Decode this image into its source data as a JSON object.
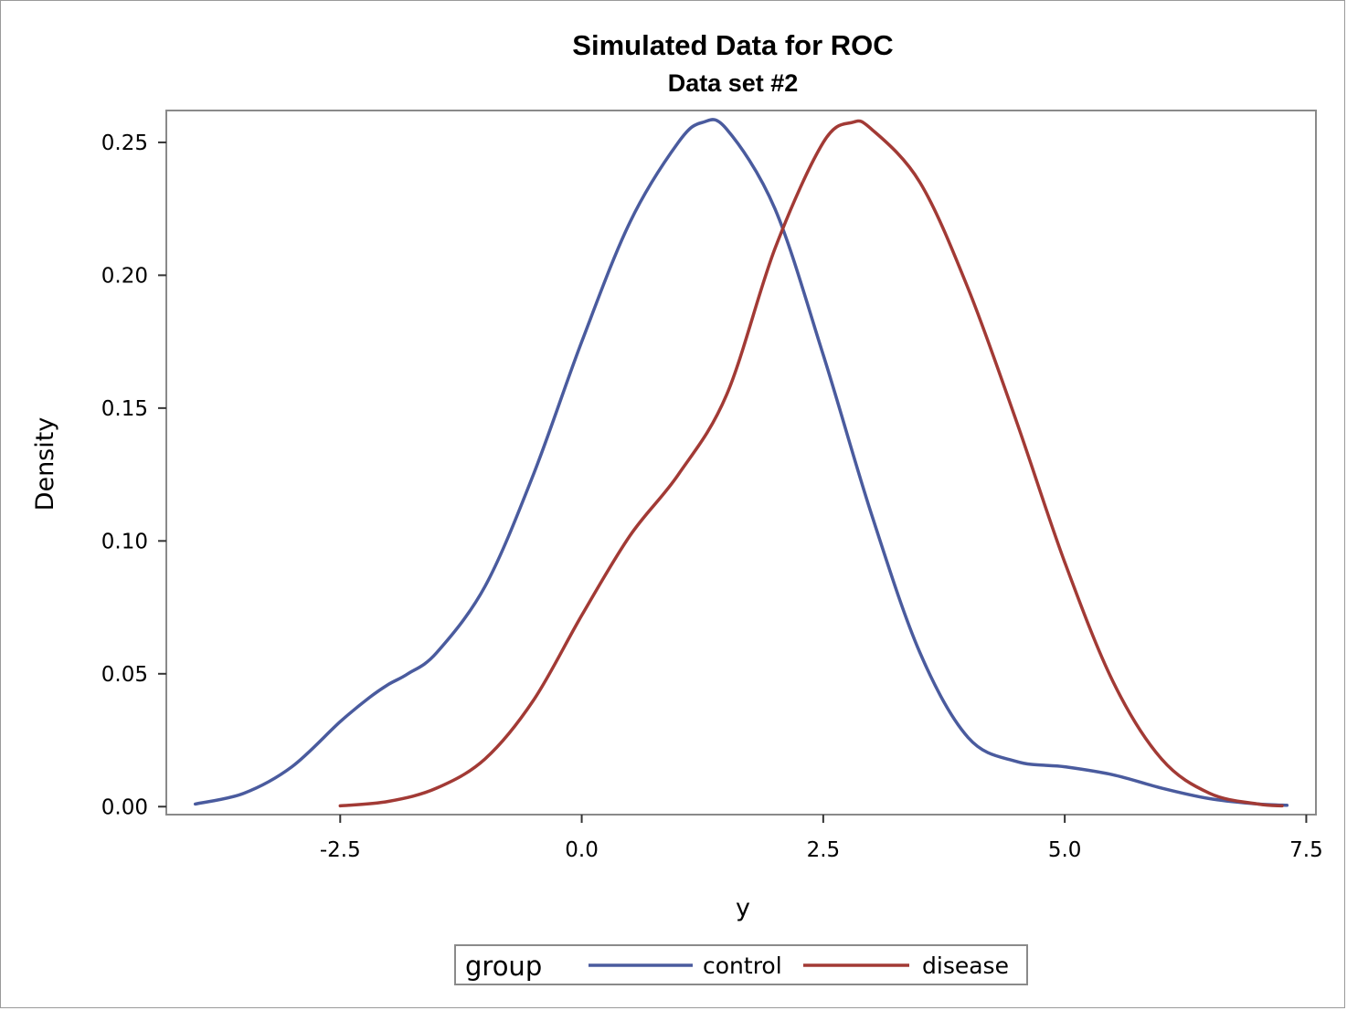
{
  "chart_data": {
    "type": "line",
    "title": "Simulated Data for ROC",
    "subtitle": "Data set #2",
    "xlabel": "y",
    "ylabel": "Density",
    "xlim": [
      -4.3,
      7.6
    ],
    "ylim": [
      -0.003,
      0.262
    ],
    "x_ticks": [
      -2.5,
      0.0,
      2.5,
      5.0,
      7.5
    ],
    "x_tick_labels": [
      "-2.5",
      "0.0",
      "2.5",
      "5.0",
      "7.5"
    ],
    "y_ticks": [
      0.0,
      0.05,
      0.1,
      0.15,
      0.2,
      0.25
    ],
    "y_tick_labels": [
      "0.00",
      "0.05",
      "0.10",
      "0.15",
      "0.20",
      "0.25"
    ],
    "grid": false,
    "legend": {
      "title": "group",
      "placement": "bottom-center",
      "entries": [
        "control",
        "disease"
      ]
    },
    "series": [
      {
        "name": "control",
        "color": "#4a5b9e",
        "x": [
          -4.0,
          -3.5,
          -3.0,
          -2.5,
          -2.2,
          -2.0,
          -1.8,
          -1.5,
          -1.0,
          -0.5,
          0.0,
          0.5,
          1.0,
          1.25,
          1.5,
          2.0,
          2.5,
          3.0,
          3.5,
          4.0,
          4.5,
          5.0,
          5.5,
          6.0,
          6.5,
          7.0,
          7.3
        ],
        "y": [
          0.001,
          0.005,
          0.015,
          0.032,
          0.041,
          0.046,
          0.05,
          0.058,
          0.083,
          0.125,
          0.175,
          0.22,
          0.25,
          0.2575,
          0.255,
          0.225,
          0.17,
          0.11,
          0.058,
          0.026,
          0.017,
          0.015,
          0.012,
          0.007,
          0.003,
          0.001,
          0.0005
        ]
      },
      {
        "name": "disease",
        "color": "#a23a35",
        "x": [
          -2.5,
          -2.0,
          -1.5,
          -1.0,
          -0.5,
          0.0,
          0.5,
          1.0,
          1.5,
          2.0,
          2.5,
          2.8,
          3.0,
          3.5,
          4.0,
          4.5,
          5.0,
          5.5,
          6.0,
          6.5,
          7.0,
          7.25
        ],
        "y": [
          0.0003,
          0.002,
          0.007,
          0.018,
          0.04,
          0.072,
          0.102,
          0.125,
          0.155,
          0.21,
          0.25,
          0.2575,
          0.255,
          0.235,
          0.195,
          0.145,
          0.092,
          0.047,
          0.018,
          0.005,
          0.001,
          0.0003
        ]
      }
    ]
  }
}
